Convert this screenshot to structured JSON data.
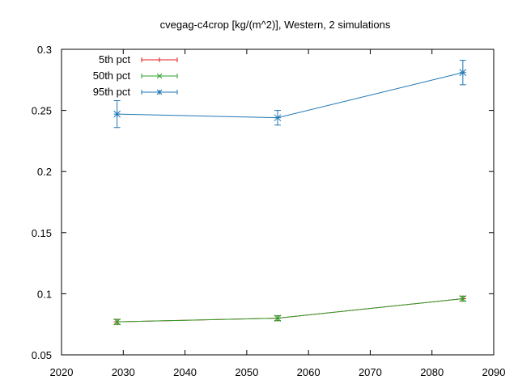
{
  "chart_data": {
    "type": "line",
    "title": "cvegag-c4crop [kg/(m^2)], Western, 2 simulations",
    "xlabel": "",
    "ylabel": "",
    "xlim": [
      2020,
      2090
    ],
    "ylim": [
      0.05,
      0.3
    ],
    "xticks": [
      2020,
      2030,
      2040,
      2050,
      2060,
      2070,
      2080,
      2090
    ],
    "yticks": [
      0.05,
      0.1,
      0.15,
      0.2,
      0.25,
      0.3
    ],
    "ytick_labels": [
      "0.05",
      "0.1",
      "0.15",
      "0.2",
      "0.25",
      "0.3"
    ],
    "grid": false,
    "legend_position": "top-left",
    "series": [
      {
        "name": "5th pct",
        "color": "#e41a1c",
        "marker": "plus",
        "x": [
          2029,
          2055,
          2085
        ],
        "y": [
          0.077,
          0.08,
          0.096
        ],
        "err_low": [
          0.075,
          0.078,
          0.094
        ],
        "err_high": [
          0.079,
          0.082,
          0.098
        ]
      },
      {
        "name": "50th pct",
        "color": "#2ca02c",
        "marker": "x",
        "x": [
          2029,
          2055,
          2085
        ],
        "y": [
          0.077,
          0.08,
          0.096
        ],
        "err_low": [
          0.075,
          0.078,
          0.094
        ],
        "err_high": [
          0.079,
          0.082,
          0.098
        ]
      },
      {
        "name": "95th pct",
        "color": "#1f77b4",
        "marker": "star",
        "x": [
          2029,
          2055,
          2085
        ],
        "y": [
          0.247,
          0.244,
          0.281
        ],
        "err_low": [
          0.236,
          0.238,
          0.271
        ],
        "err_high": [
          0.258,
          0.25,
          0.291
        ]
      }
    ]
  }
}
